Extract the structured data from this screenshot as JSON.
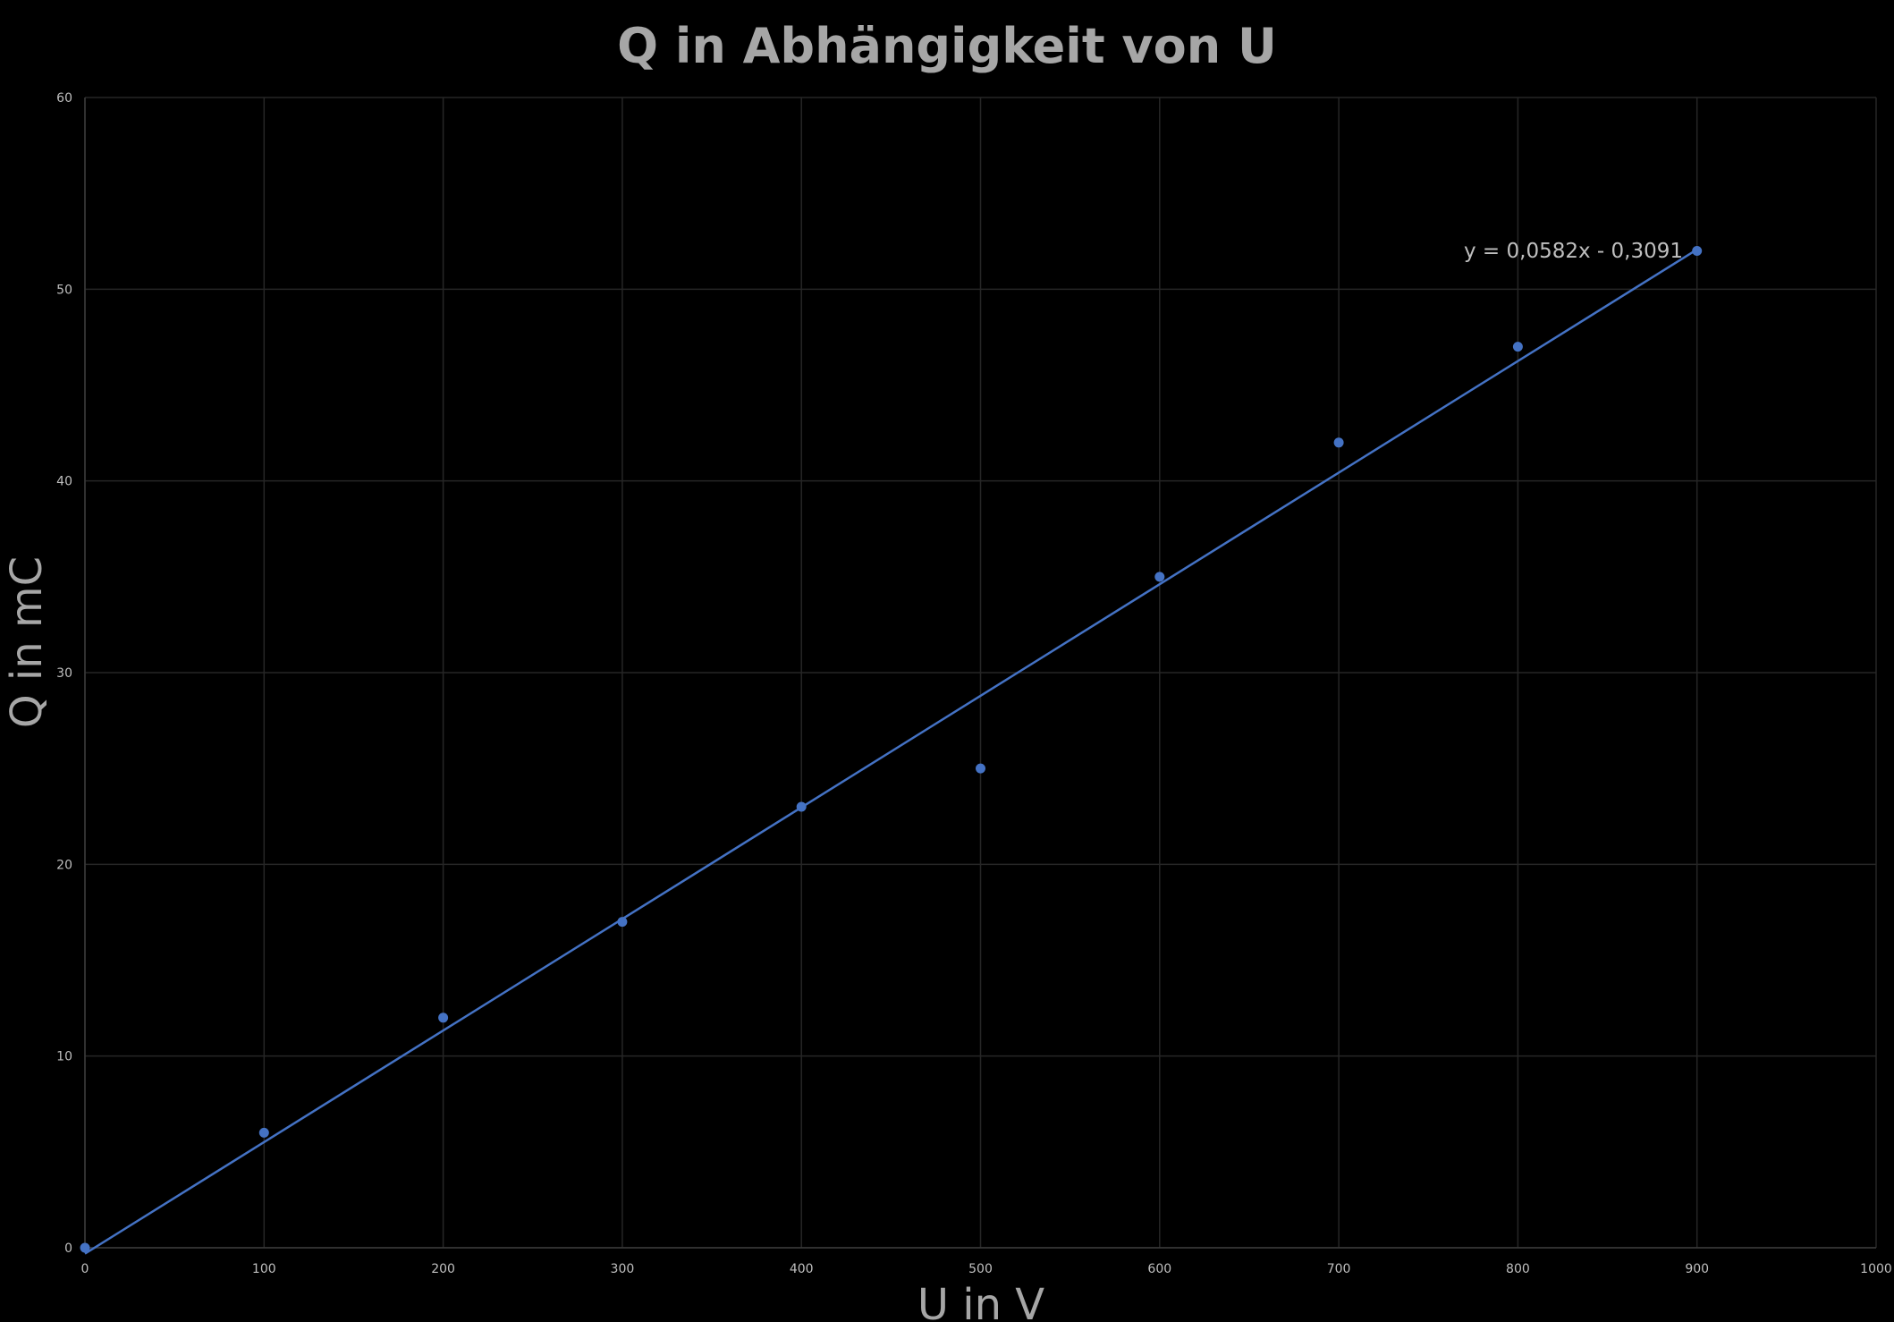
{
  "chart_data": {
    "type": "scatter",
    "title": "Q in Abhängigkeit von U",
    "xlabel": "U in V",
    "ylabel": "Q in mC",
    "xlim": [
      0,
      1000
    ],
    "ylim": [
      0,
      60
    ],
    "x_ticks": [
      0,
      100,
      200,
      300,
      400,
      500,
      600,
      700,
      800,
      900,
      1000
    ],
    "y_ticks": [
      0,
      10,
      20,
      30,
      40,
      50,
      60
    ],
    "x_tick_labels": [
      "0",
      "100",
      "200",
      "300",
      "400",
      "500",
      "600",
      "700",
      "800",
      "900",
      "1000"
    ],
    "y_tick_labels": [
      "0",
      "10",
      "20",
      "30",
      "40",
      "50",
      "60"
    ],
    "grid": true,
    "series": [
      {
        "x": [
          0,
          100,
          200,
          300,
          400,
          500,
          600,
          700,
          800,
          900
        ],
        "y": [
          0,
          6,
          12,
          17,
          23,
          25,
          35,
          42,
          47,
          52
        ],
        "color": "#4472c4"
      }
    ],
    "trendline": {
      "type": "linear",
      "slope": 0.0582,
      "intercept": -0.3091,
      "x_range": [
        0,
        900
      ],
      "equation_label": "y = 0,0582x - 0,3091",
      "color": "#4472c4"
    },
    "colors": {
      "background": "#000000",
      "grid": "#262626",
      "text": "#bfbfbf",
      "title": "#a6a6a6",
      "marker": "#4472c4"
    }
  }
}
